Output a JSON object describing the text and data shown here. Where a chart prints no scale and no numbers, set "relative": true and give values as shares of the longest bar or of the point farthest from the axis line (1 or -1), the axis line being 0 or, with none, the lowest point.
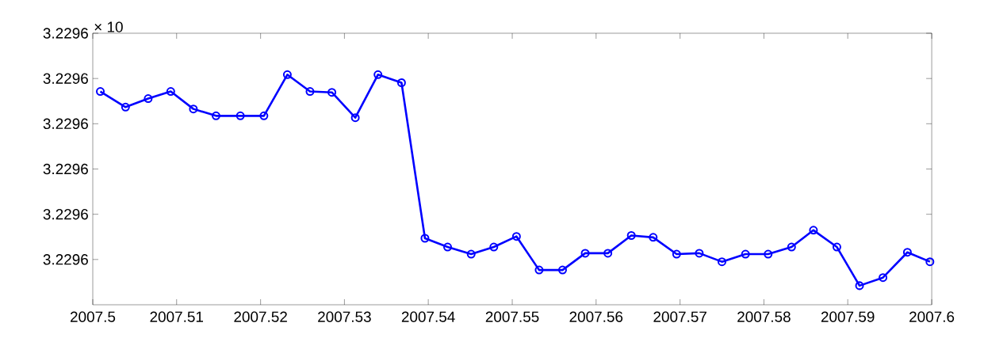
{
  "chart_data": {
    "type": "line",
    "relative": true,
    "annotations": [
      "× 10",
      "3.2296",
      "3.2296",
      "3.2296",
      "3.2296",
      "3.2296",
      "3.2296"
    ],
    "x": [
      2007.5009,
      2007.5039,
      2007.5066,
      2007.5093,
      2007.512,
      2007.5147,
      2007.5176,
      2007.5204,
      2007.5232,
      2007.5259,
      2007.5285,
      2007.5313,
      2007.534,
      2007.5368,
      2007.5396,
      2007.5423,
      2007.5451,
      2007.5478,
      2007.5505,
      2007.5532,
      2007.556,
      2007.5587,
      2007.5614,
      2007.5642,
      2007.5668,
      2007.5696,
      2007.5723,
      2007.575,
      2007.5778,
      2007.5805,
      2007.5833,
      2007.5859,
      2007.5887,
      2007.5914,
      2007.5942,
      2007.5971,
      2007.5998
    ],
    "series": [
      {
        "color": "#0000ff",
        "values": [
          0.927,
          0.859,
          0.896,
          0.927,
          0.851,
          0.821,
          0.821,
          0.821,
          1,
          0.927,
          0.923,
          0.813,
          1,
          0.965,
          0.289,
          0.251,
          0.22,
          0.251,
          0.297,
          0.151,
          0.151,
          0.224,
          0.224,
          0.301,
          0.293,
          0.22,
          0.224,
          0.187,
          0.22,
          0.22,
          0.251,
          0.324,
          0.251,
          0.083,
          0.118,
          0.228,
          0.187
        ]
      }
    ],
    "xlim": [
      2007.5,
      2007.6
    ],
    "xticks": [
      2007.5,
      2007.51,
      2007.52,
      2007.53,
      2007.54,
      2007.55,
      2007.56,
      2007.57,
      2007.58,
      2007.59,
      2007.6
    ],
    "legend": false,
    "marker": "circle",
    "line_style": "solid"
  }
}
